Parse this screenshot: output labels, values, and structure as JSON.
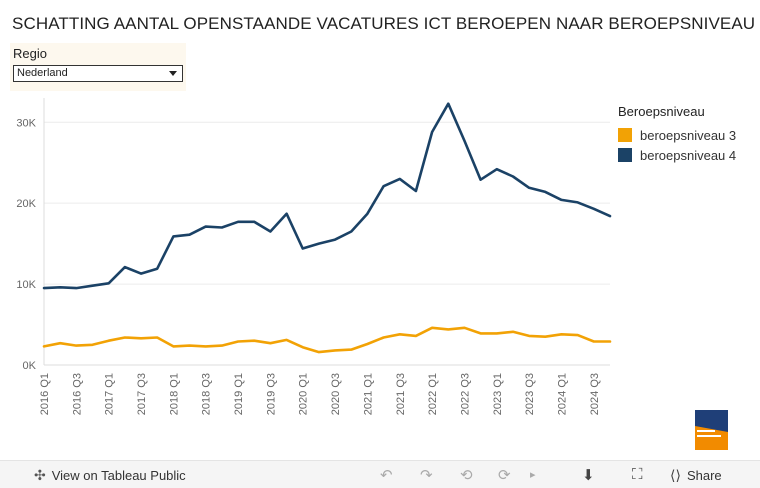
{
  "title": "SCHATTING AANTAL OPENSTAANDE VACATURES ICT BEROEPEN NAAR BEROEPSNIVEAU",
  "filter": {
    "label": "Regio",
    "value": "Nederland"
  },
  "legend": {
    "title": "Beroepsniveau"
  },
  "footer": {
    "view_public": "View on Tableau Public",
    "share": "Share",
    "icons": [
      "undo-icon",
      "redo-icon",
      "revert-icon",
      "refresh-icon",
      "download-icon",
      "fullscreen-icon",
      "share-icon"
    ]
  },
  "colors": {
    "niveau3": "#f2a205",
    "niveau4": "#1b4266",
    "grid": "#ececec",
    "axis_text": "#666666"
  },
  "chart_data": {
    "type": "line",
    "title": "SCHATTING AANTAL OPENSTAANDE VACATURES ICT BEROEPEN NAAR BEROEPSNIVEAU",
    "xlabel": "",
    "ylabel": "",
    "ylim": [
      0,
      33000
    ],
    "yticks": [
      0,
      10000,
      20000,
      30000
    ],
    "ytick_labels": [
      "0K",
      "10K",
      "20K",
      "30K"
    ],
    "x": [
      "2016 Q1",
      "2016 Q2",
      "2016 Q3",
      "2016 Q4",
      "2017 Q1",
      "2017 Q2",
      "2017 Q3",
      "2017 Q4",
      "2018 Q1",
      "2018 Q2",
      "2018 Q3",
      "2018 Q4",
      "2019 Q1",
      "2019 Q2",
      "2019 Q3",
      "2019 Q4",
      "2020 Q1",
      "2020 Q2",
      "2020 Q3",
      "2020 Q4",
      "2021 Q1",
      "2021 Q2",
      "2021 Q3",
      "2021 Q4",
      "2022 Q1",
      "2022 Q2",
      "2022 Q3",
      "2022 Q4",
      "2023 Q1",
      "2023 Q2",
      "2023 Q3",
      "2023 Q4",
      "2024 Q1",
      "2024 Q2",
      "2024 Q3",
      "2024 Q4"
    ],
    "xtick_labels": [
      "2016 Q1",
      "2016 Q3",
      "2017 Q1",
      "2017 Q3",
      "2018 Q1",
      "2018 Q3",
      "2019 Q1",
      "2019 Q3",
      "2020 Q1",
      "2020 Q3",
      "2021 Q1",
      "2021 Q3",
      "2022 Q1",
      "2022 Q3",
      "2023 Q1",
      "2023 Q3",
      "2024 Q1",
      "2024 Q3"
    ],
    "grid": true,
    "legend_position": "right",
    "series": [
      {
        "name": "beroepsniveau 3",
        "color": "#f2a205",
        "values": [
          2300,
          2700,
          2400,
          2500,
          3000,
          3400,
          3300,
          3400,
          2300,
          2400,
          2300,
          2400,
          2900,
          3000,
          2700,
          3100,
          2200,
          1600,
          1800,
          1900,
          2600,
          3400,
          3800,
          3600,
          4600,
          4400,
          4600,
          3900,
          3900,
          4100,
          3600,
          3500,
          3800,
          3700,
          2900,
          2900
        ]
      },
      {
        "name": "beroepsniveau 4",
        "color": "#1b4266",
        "values": [
          9500,
          9600,
          9500,
          9800,
          10100,
          12100,
          11300,
          11900,
          15900,
          16100,
          17100,
          17000,
          17700,
          17700,
          16500,
          18700,
          14400,
          15000,
          15500,
          16500,
          18700,
          22100,
          23000,
          21500,
          28800,
          32300,
          27700,
          22900,
          24200,
          23300,
          21900,
          21400,
          20400,
          20100,
          19300,
          18400
        ]
      }
    ]
  }
}
